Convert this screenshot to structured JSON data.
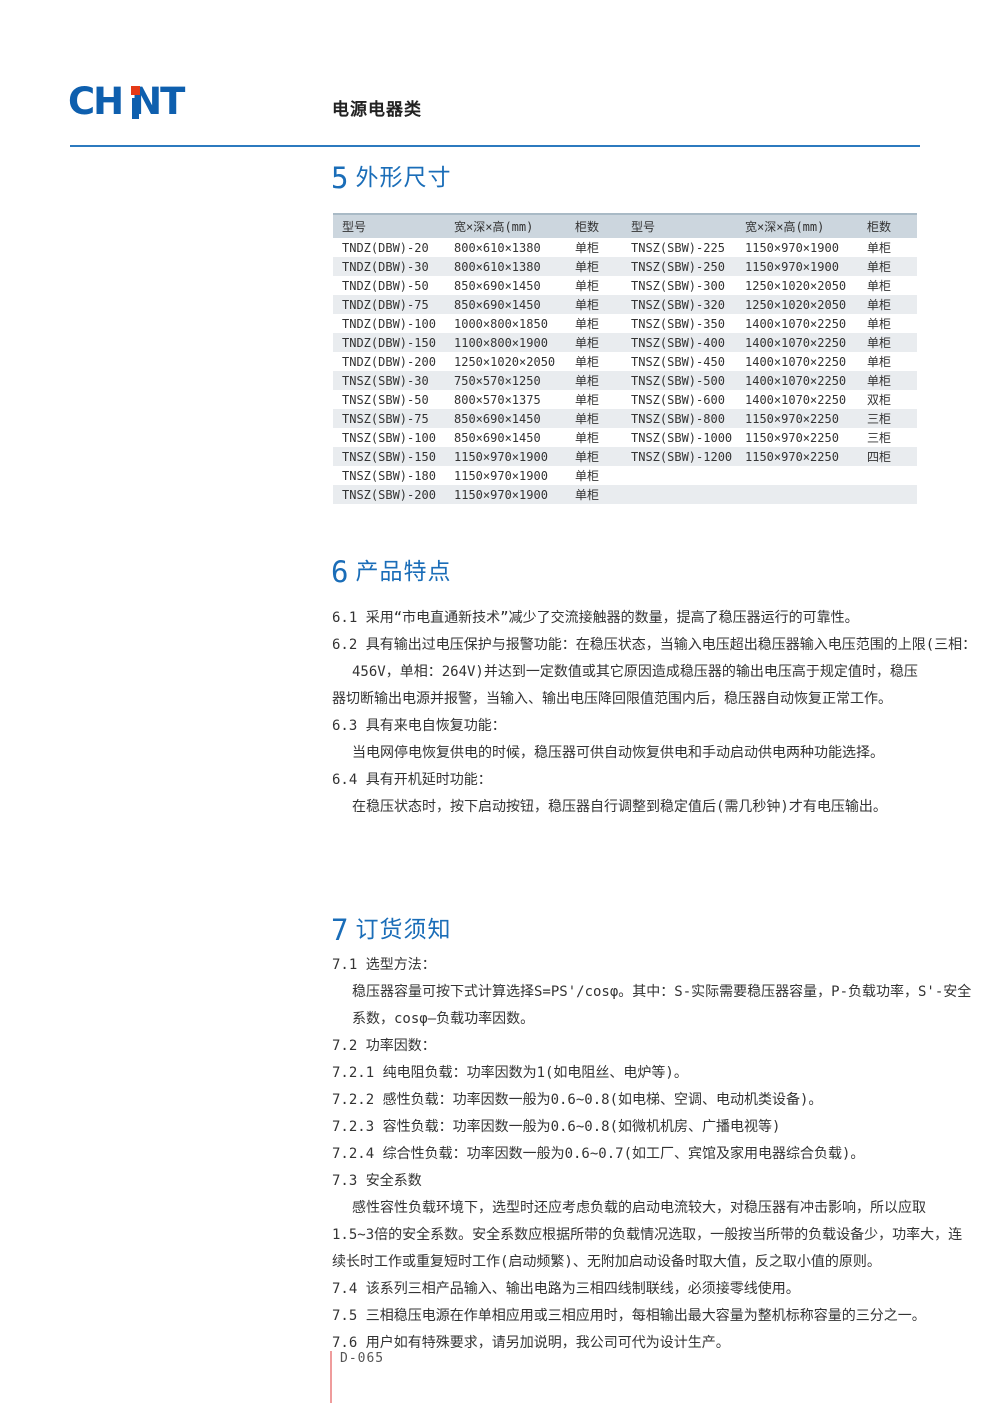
{
  "page": {
    "category_title": "电源电器类",
    "page_number": "D-065"
  },
  "logo": {
    "part1": "CH",
    "part2": "NT",
    "brand_color": "#0e5fae",
    "dot_color": "#e53917"
  },
  "colors": {
    "heading_blue": "#1a6db8",
    "rule_blue": "#2c7abf",
    "table_header_bg": "#ccd6de",
    "table_stripe_bg": "#e9ecef",
    "footer_line_red": "#ef9c9c",
    "body_text": "#333333"
  },
  "sections": {
    "dimensions": {
      "number": "5",
      "title": "外形尺寸",
      "table": {
        "headers": [
          "型号",
          "宽×深×高(mm)",
          "柜数",
          "型号",
          "宽×深×高(mm)",
          "柜数"
        ],
        "rows": [
          [
            "TNDZ(DBW)-20",
            "800×610×1380",
            "单柜",
            "TNSZ(SBW)-225",
            "1150×970×1900",
            "单柜"
          ],
          [
            "TNDZ(DBW)-30",
            "800×610×1380",
            "单柜",
            "TNSZ(SBW)-250",
            "1150×970×1900",
            "单柜"
          ],
          [
            "TNDZ(DBW)-50",
            "850×690×1450",
            "单柜",
            "TNSZ(SBW)-300",
            "1250×1020×2050",
            "单柜"
          ],
          [
            "TNDZ(DBW)-75",
            "850×690×1450",
            "单柜",
            "TNSZ(SBW)-320",
            "1250×1020×2050",
            "单柜"
          ],
          [
            "TNDZ(DBW)-100",
            "1000×800×1850",
            "单柜",
            "TNSZ(SBW)-350",
            "1400×1070×2250",
            "单柜"
          ],
          [
            "TNDZ(DBW)-150",
            "1100×800×1900",
            "单柜",
            "TNSZ(SBW)-400",
            "1400×1070×2250",
            "单柜"
          ],
          [
            "TNDZ(DBW)-200",
            "1250×1020×2050",
            "单柜",
            "TNSZ(SBW)-450",
            "1400×1070×2250",
            "单柜"
          ],
          [
            "TNSZ(SBW)-30",
            "750×570×1250",
            "单柜",
            "TNSZ(SBW)-500",
            "1400×1070×2250",
            "单柜"
          ],
          [
            "TNSZ(SBW)-50",
            "800×570×1375",
            "单柜",
            "TNSZ(SBW)-600",
            "1400×1070×2250",
            "双柜"
          ],
          [
            "TNSZ(SBW)-75",
            "850×690×1450",
            "单柜",
            "TNSZ(SBW)-800",
            "1150×970×2250",
            "三柜"
          ],
          [
            "TNSZ(SBW)-100",
            "850×690×1450",
            "单柜",
            "TNSZ(SBW)-1000",
            "1150×970×2250",
            "三柜"
          ],
          [
            "TNSZ(SBW)-150",
            "1150×970×1900",
            "单柜",
            "TNSZ(SBW)-1200",
            "1150×970×2250",
            "四柜"
          ],
          [
            "TNSZ(SBW)-180",
            "1150×970×1900",
            "单柜",
            "",
            "",
            ""
          ],
          [
            "TNSZ(SBW)-200",
            "1150×970×1900",
            "单柜",
            "",
            "",
            ""
          ]
        ]
      }
    },
    "features": {
      "number": "6",
      "title": "产品特点",
      "paragraphs": [
        {
          "text": "6.1 采用“市电直通新技术”减少了交流接触器的数量，提高了稳压器运行的可靠性。",
          "indent": false
        },
        {
          "text": "6.2 具有输出过电压保护与报警功能：在稳压状态，当输入电压超出稳压器输入电压范围的上限(三相：",
          "indent": false
        },
        {
          "text": "456V，单相：264V)并达到一定数值或其它原因造成稳压器的输出电压高于规定值时，稳压",
          "indent": true
        },
        {
          "text": "器切断输出电源并报警，当输入、输出电压降回限值范围内后，稳压器自动恢复正常工作。",
          "indent": false
        },
        {
          "text": "6.3 具有来电自恢复功能：",
          "indent": false
        },
        {
          "text": "当电网停电恢复供电的时候，稳压器可供自动恢复供电和手动启动供电两种功能选择。",
          "indent": true
        },
        {
          "text": "6.4 具有开机延时功能：",
          "indent": false
        },
        {
          "text": "在稳压状态时，按下启动按钮，稳压器自行调整到稳定值后(需几秒钟)才有电压输出。",
          "indent": true
        }
      ]
    },
    "ordering": {
      "number": "7",
      "title": "订货须知",
      "paragraphs": [
        {
          "text": "7.1 选型方法：",
          "indent": false
        },
        {
          "text": "稳压器容量可按下式计算选择S=PS'/cosφ。其中：S-实际需要稳压器容量，P-负载功率，S'-安全",
          "indent": true
        },
        {
          "text": "系数，cosφ—负载功率因数。",
          "indent": true
        },
        {
          "text": "7.2 功率因数：",
          "indent": false
        },
        {
          "text": "7.2.1 纯电阻负载：功率因数为1(如电阻丝、电炉等)。",
          "indent": false
        },
        {
          "text": "7.2.2 感性负载：功率因数一般为0.6~0.8(如电梯、空调、电动机类设备)。",
          "indent": false
        },
        {
          "text": "7.2.3 容性负载：功率因数一般为0.6~0.8(如微机机房、广播电视等)",
          "indent": false
        },
        {
          "text": "7.2.4 综合性负载：功率因数一般为0.6~0.7(如工厂、宾馆及家用电器综合负载)。",
          "indent": false
        },
        {
          "text": "7.3 安全系数",
          "indent": false
        },
        {
          "text": "感性容性负载环境下，选型时还应考虑负载的启动电流较大，对稳压器有冲击影响，所以应取",
          "indent": true
        },
        {
          "text": "1.5~3倍的安全系数。安全系数应根据所带的负载情况选取，一般按当所带的负载设备少，功率大，连",
          "indent": false
        },
        {
          "text": "续长时工作或重复短时工作(启动频繁)、无附加启动设备时取大值，反之取小值的原则。",
          "indent": false
        },
        {
          "text": "7.4 该系列三相产品输入、输出电路为三相四线制联线，必须接零线使用。",
          "indent": false
        },
        {
          "text": "7.5 三相稳压电源在作单相应用或三相应用时，每相输出最大容量为整机标称容量的三分之一。",
          "indent": false
        },
        {
          "text": "7.6 用户如有特殊要求，请另加说明，我公司可代为设计生产。",
          "indent": false
        }
      ]
    }
  }
}
